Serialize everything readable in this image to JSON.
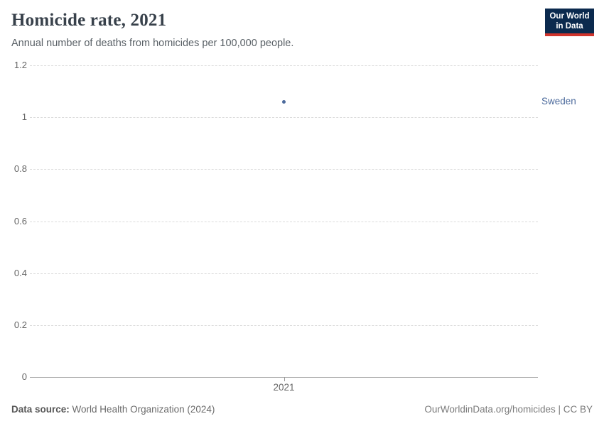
{
  "header": {
    "title": "Homicide rate, 2021",
    "subtitle": "Annual number of deaths from homicides per 100,000 people.",
    "logo": {
      "line1": "Our World",
      "line2": "in Data",
      "bg_color": "#0b2a4e",
      "accent_color": "#d0342c"
    }
  },
  "chart_data": {
    "type": "scatter",
    "title": "Homicide rate, 2021",
    "subtitle": "Annual number of deaths from homicides per 100,000 people.",
    "x": [
      2021
    ],
    "xticks": [
      "2021"
    ],
    "series": [
      {
        "name": "Sweden",
        "values": [
          1.06
        ],
        "color": "#4c6a9c"
      }
    ],
    "ylim": [
      0,
      1.2
    ],
    "yticks": [
      0,
      0.2,
      0.4,
      0.6,
      0.8,
      1,
      1.2
    ],
    "xlabel": "",
    "ylabel": "",
    "grid": "horizontal-dashed",
    "legend_position": "right-of-point",
    "gridline_color": "#dcdcdc",
    "axis_line_color": "#a7a7a7",
    "tick_label_color": "#666666"
  },
  "footer": {
    "data_source_label": "Data source:",
    "data_source_value": "World Health Organization (2024)",
    "credit": "OurWorldinData.org/homicides | CC BY"
  }
}
